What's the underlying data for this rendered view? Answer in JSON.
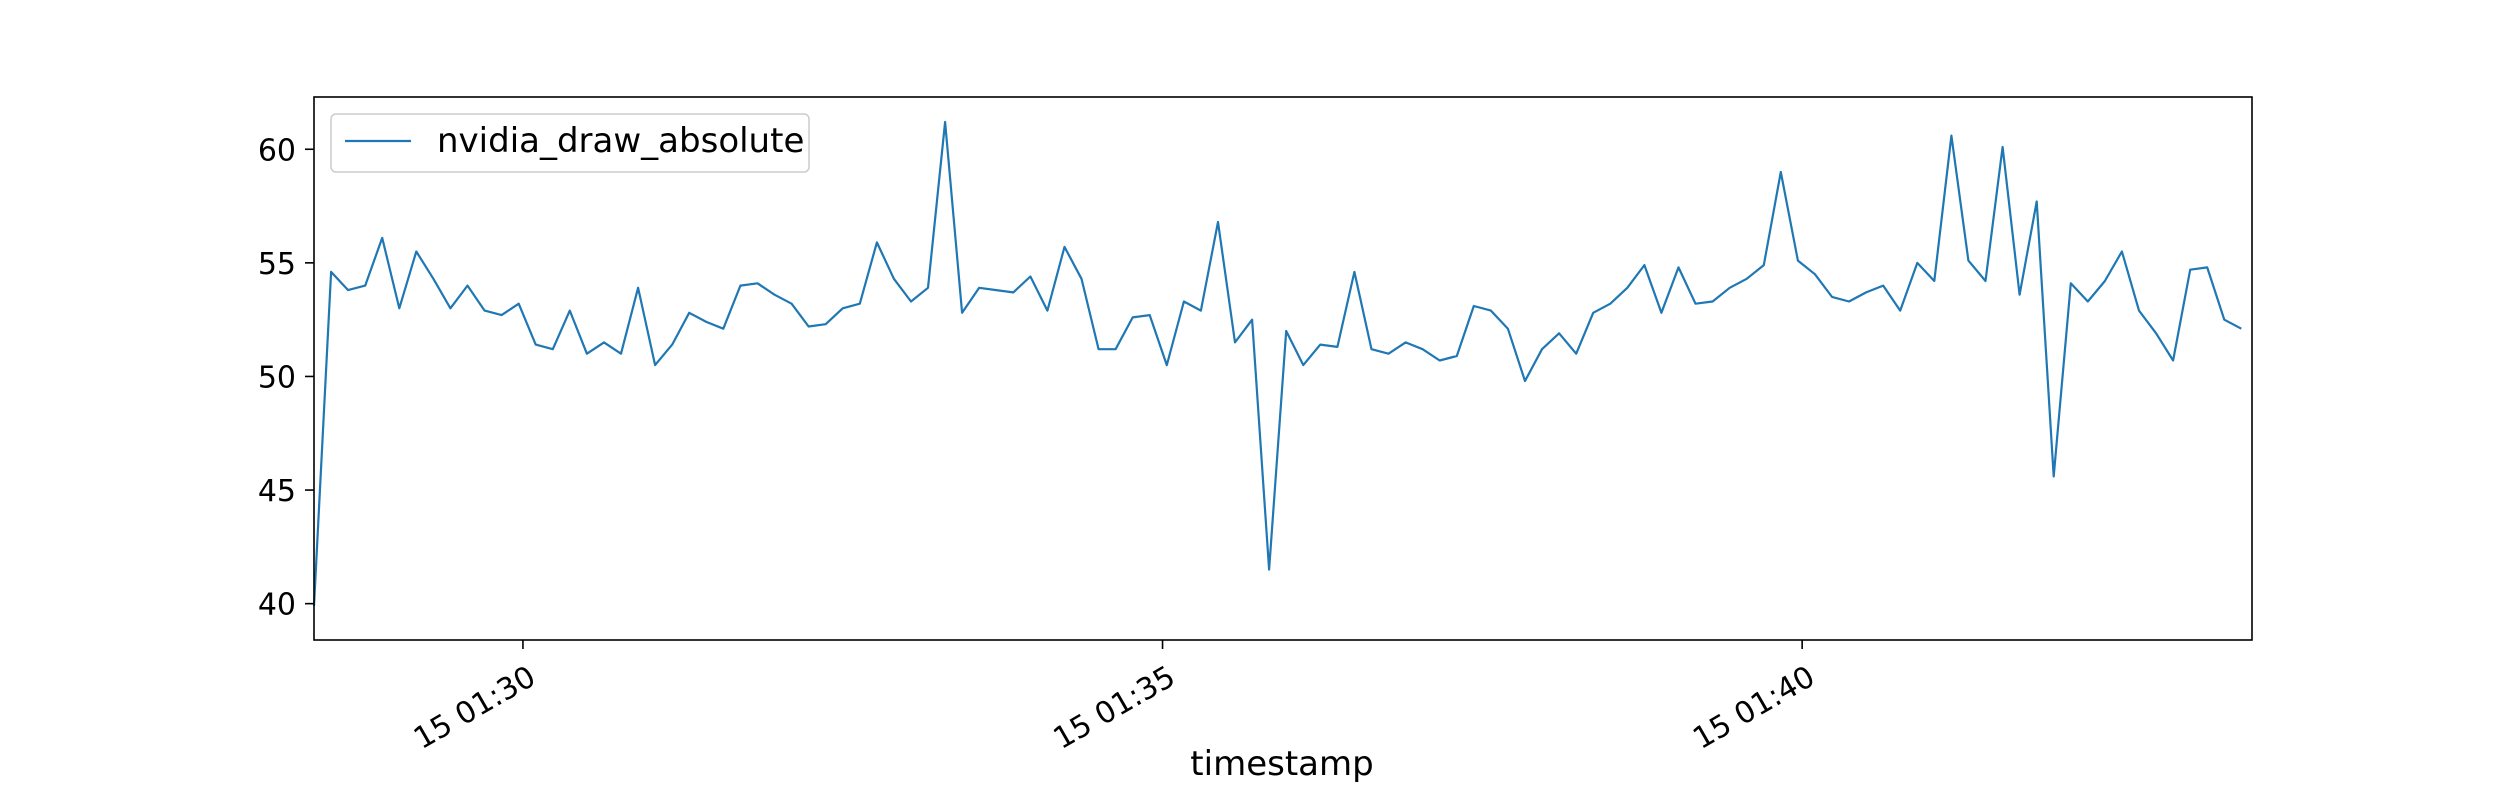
{
  "chart_data": {
    "type": "line",
    "xlabel": "timestamp",
    "ylabel": "",
    "title": "",
    "ylim": [
      38.4,
      62.3
    ],
    "xlim": [
      "15 01:28:22",
      "15 01:43:31"
    ],
    "x_ticks": [
      {
        "t": "15 01:30:00",
        "label": "15 01:30"
      },
      {
        "t": "15 01:35:00",
        "label": "15 01:35"
      },
      {
        "t": "15 01:40:00",
        "label": "15 01:40"
      }
    ],
    "y_ticks": [
      40,
      45,
      50,
      55,
      60
    ],
    "x_interval_seconds": 8,
    "legend_position": "top-left",
    "grid": false,
    "series": [
      {
        "name": "nvidia_draw_absolute",
        "color": "#1f77b4",
        "x_start": "15 01:28:22",
        "values": [
          39.9,
          54.6,
          53.8,
          54.0,
          56.1,
          53.0,
          55.5,
          54.3,
          53.0,
          54.0,
          52.9,
          52.7,
          53.2,
          51.4,
          51.2,
          52.9,
          51.0,
          51.5,
          51.0,
          53.9,
          50.5,
          51.4,
          52.8,
          52.4,
          52.1,
          54.0,
          54.1,
          53.6,
          53.2,
          52.2,
          52.3,
          53.0,
          53.2,
          55.9,
          54.3,
          53.3,
          53.9,
          61.2,
          52.8,
          53.9,
          53.8,
          53.7,
          54.4,
          52.9,
          55.7,
          54.3,
          51.2,
          51.2,
          52.6,
          52.7,
          50.5,
          53.3,
          52.9,
          56.8,
          51.5,
          52.5,
          41.5,
          52.0,
          50.5,
          51.4,
          51.3,
          54.6,
          51.2,
          51.0,
          51.5,
          51.2,
          50.7,
          50.9,
          53.1,
          52.9,
          52.1,
          49.8,
          51.2,
          51.9,
          51.0,
          52.8,
          53.2,
          53.9,
          54.9,
          52.8,
          54.8,
          53.2,
          53.3,
          53.9,
          54.3,
          54.9,
          59.0,
          55.1,
          54.5,
          53.5,
          53.3,
          53.7,
          54.0,
          52.9,
          55.0,
          54.2,
          60.6,
          55.1,
          54.2,
          60.1,
          53.6,
          57.7,
          45.6,
          54.1,
          53.3,
          54.2,
          55.5,
          52.9,
          51.9,
          50.7,
          54.7,
          54.8,
          52.5,
          52.1
        ]
      }
    ]
  }
}
